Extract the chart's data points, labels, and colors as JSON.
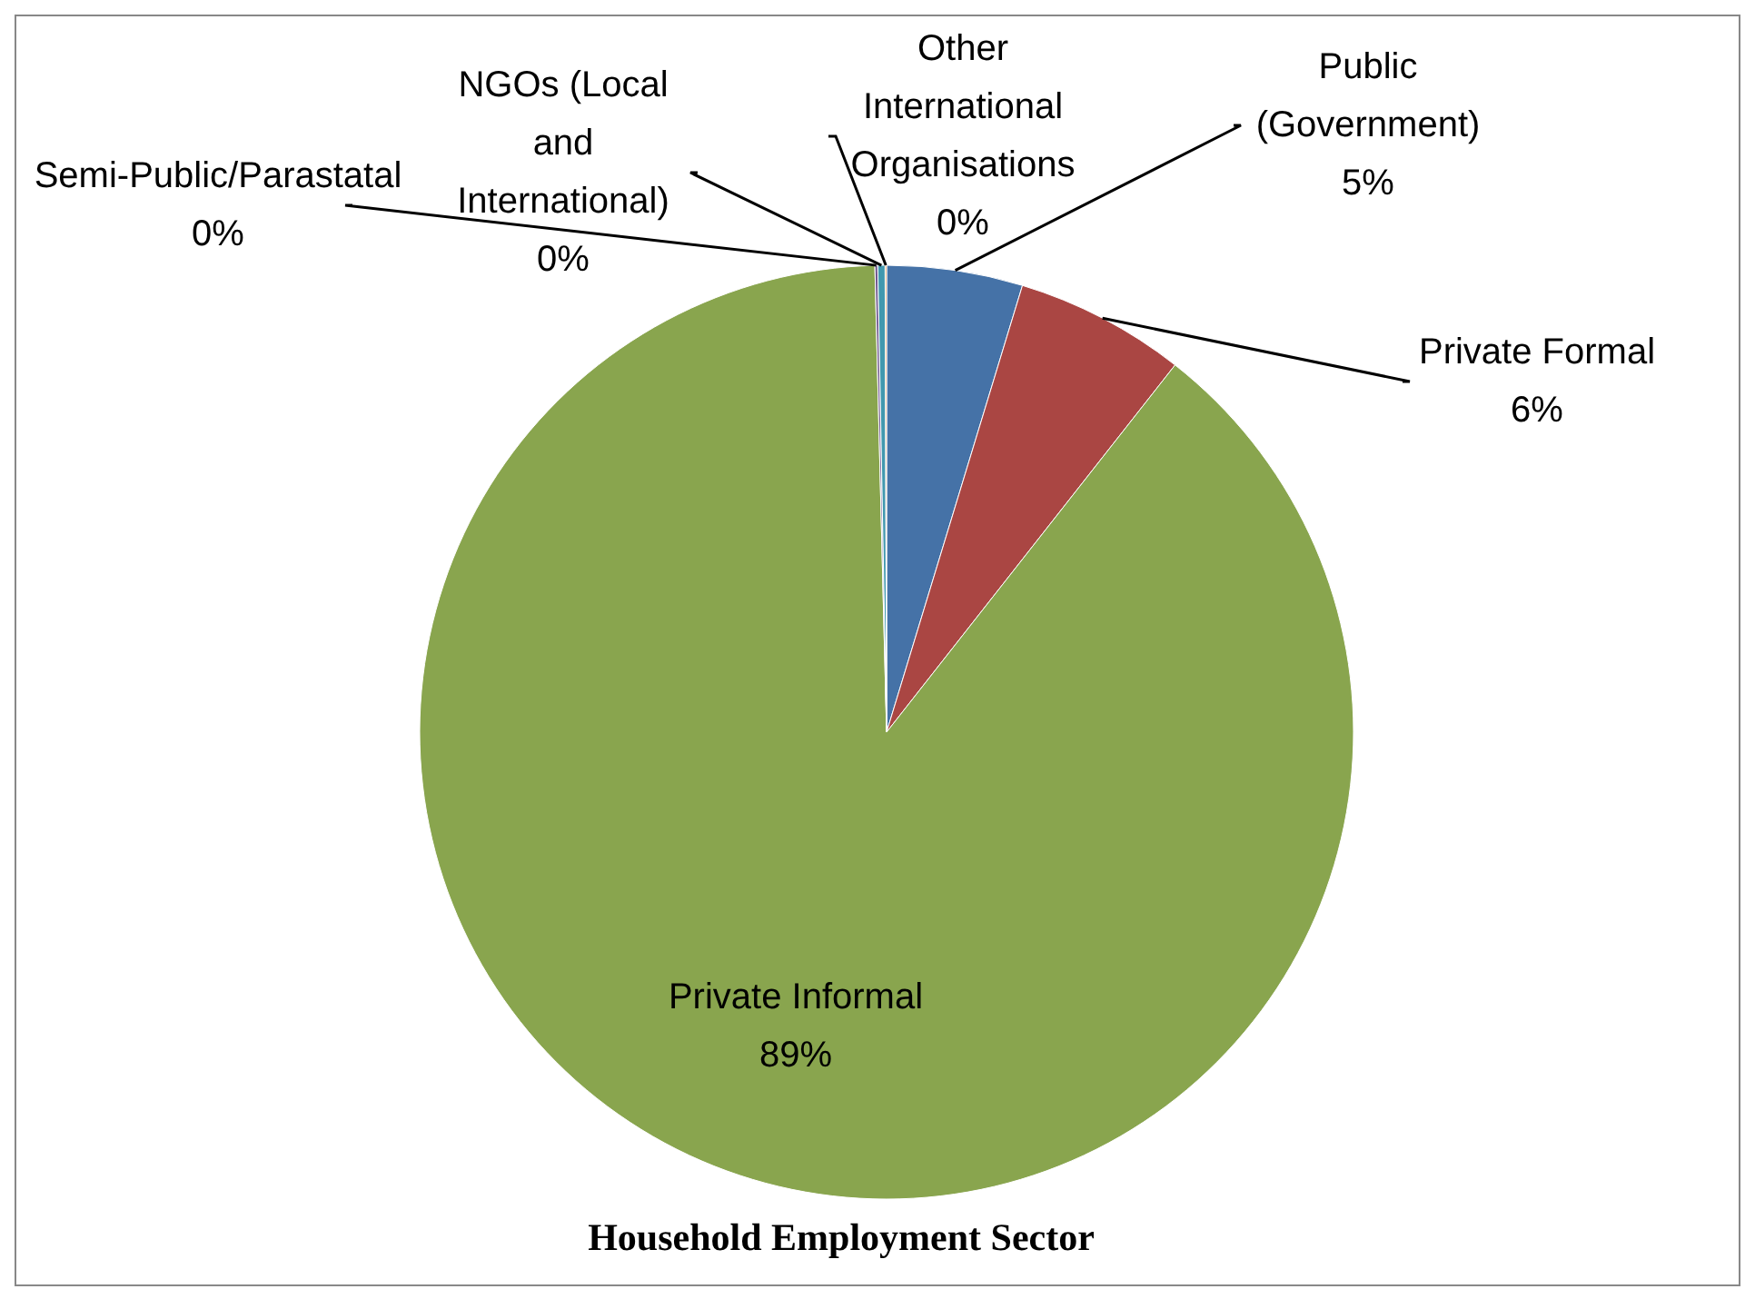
{
  "chart_data": {
    "type": "pie",
    "title": "Household Employment Sector",
    "categories": [
      "Public (Government)",
      "Private Formal",
      "Private Informal",
      "Semi-Public/Parastatal",
      "NGOs (Local and International)",
      "Other International Organisations"
    ],
    "values": [
      4.7,
      5.9,
      89.0,
      0.1,
      0.25,
      0.05
    ],
    "value_labels": [
      "5%",
      "6%",
      "89%",
      "0%",
      "0%",
      "0%"
    ],
    "colors": [
      "#4572a7",
      "#aa4643",
      "#89a54e",
      "#71588f",
      "#4198af",
      "#db843d"
    ]
  }
}
